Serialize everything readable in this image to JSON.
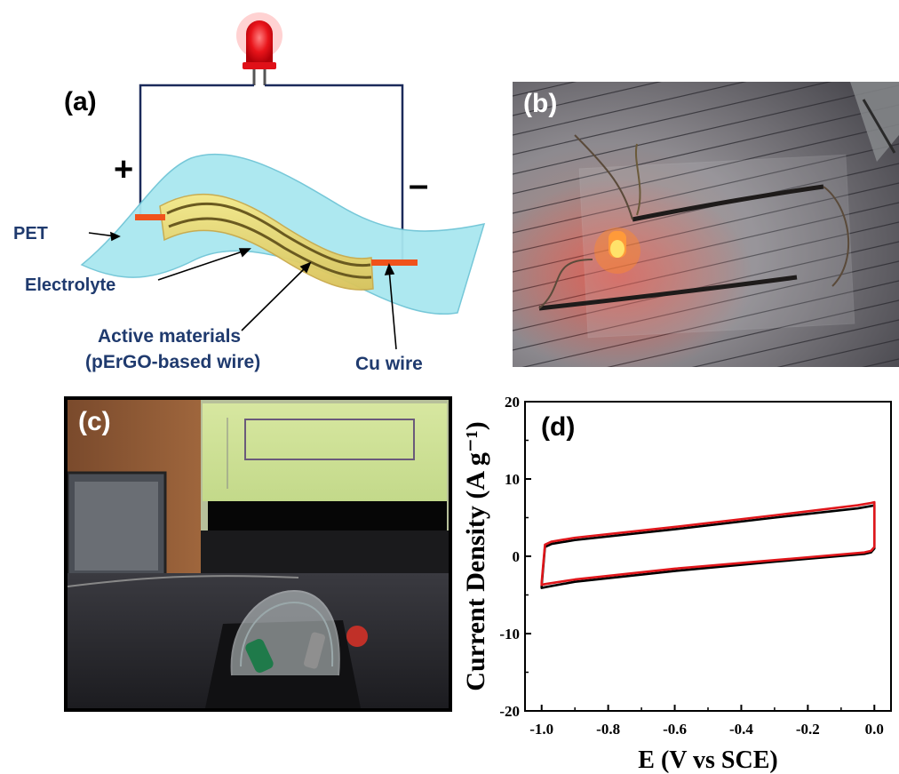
{
  "panel_a": {
    "label": "(a)",
    "plus": "+",
    "minus": "–",
    "pet": "PET",
    "electrolyte": "Electrolyte",
    "active_line1": "Active materials",
    "active_line2": "(pErGO-based wire)",
    "cu_wire": "Cu wire",
    "led_color": "#e8141a",
    "wire_color": "#1b2a5a",
    "sheet_color": "#a9e7f0",
    "copper_color": "#f0531c"
  },
  "panel_b": {
    "label": "(b)"
  },
  "panel_c": {
    "label": "(c)"
  },
  "panel_d": {
    "label": "(d)"
  },
  "chart_data": {
    "type": "line",
    "title": "",
    "xlabel": "E (V vs SCE)",
    "ylabel": "Current Density (A g⁻¹)",
    "xlim": [
      -1.05,
      0.05
    ],
    "ylim": [
      -20,
      20
    ],
    "xticks": [
      "-1.0",
      "-0.8",
      "-0.6",
      "-0.4",
      "-0.2",
      "0.0"
    ],
    "xtick_values": [
      -1.0,
      -0.8,
      -0.6,
      -0.4,
      -0.2,
      0.0
    ],
    "yticks": [
      "-20",
      "-10",
      "0",
      "10",
      "20"
    ],
    "ytick_values": [
      -20,
      -10,
      0,
      10,
      20
    ],
    "grid": false,
    "series": [
      {
        "color": "#000000",
        "x": [
          -1.0,
          -0.99,
          -0.97,
          -0.9,
          -0.6,
          -0.3,
          -0.05,
          -0.01,
          0.0,
          0.0,
          -0.01,
          -0.03,
          -0.3,
          -0.6,
          -0.9,
          -0.99,
          -1.0,
          -1.0
        ],
        "y": [
          -3.8,
          1.2,
          1.6,
          2.1,
          3.5,
          5.0,
          6.2,
          6.5,
          6.6,
          1.0,
          0.5,
          0.3,
          -0.7,
          -1.9,
          -3.3,
          -4.0,
          -4.1,
          -3.8
        ]
      },
      {
        "color": "#e0161b",
        "x": [
          -1.0,
          -0.99,
          -0.97,
          -0.9,
          -0.6,
          -0.3,
          -0.05,
          -0.01,
          0.0,
          0.0,
          -0.01,
          -0.03,
          -0.3,
          -0.6,
          -0.9,
          -0.99,
          -1.0,
          -1.0
        ],
        "y": [
          -3.4,
          1.5,
          1.9,
          2.4,
          3.8,
          5.3,
          6.6,
          6.9,
          7.0,
          1.2,
          0.7,
          0.5,
          -0.5,
          -1.6,
          -3.0,
          -3.6,
          -3.7,
          -3.4
        ]
      }
    ]
  }
}
